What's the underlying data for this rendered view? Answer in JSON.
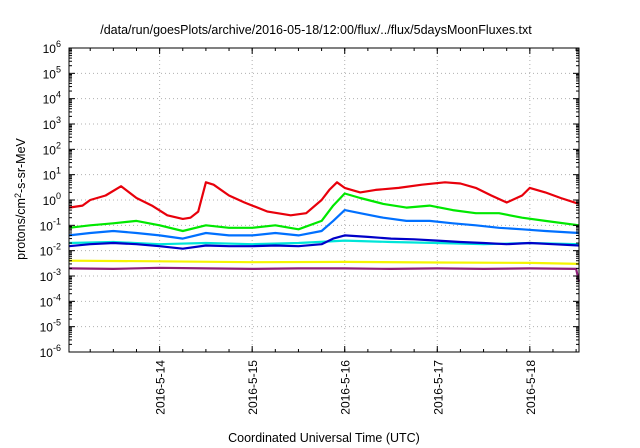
{
  "chart_data": {
    "type": "line",
    "title": "/data/run/goesPlots/archive/2016-05-18/12:00/flux/../flux/5daysMoonFluxes.txt",
    "xlabel": "Coordinated Universal Time (UTC)",
    "ylabel": {
      "pre": "protons/cm",
      "sup": "2",
      "post": "-s-sr-MeV"
    },
    "yscale": "log",
    "ylim": [
      1e-06,
      1000000.0
    ],
    "y_ticks": [
      {
        "value": 1e-06,
        "base": "10",
        "exp": "-6"
      },
      {
        "value": 1e-05,
        "base": "10",
        "exp": "-5"
      },
      {
        "value": 0.0001,
        "base": "10",
        "exp": "-4"
      },
      {
        "value": 0.001,
        "base": "10",
        "exp": "-3"
      },
      {
        "value": 0.01,
        "base": "10",
        "exp": "-2"
      },
      {
        "value": 0.1,
        "base": "10",
        "exp": "-1"
      },
      {
        "value": 1,
        "base": "10",
        "exp": "0"
      },
      {
        "value": 10,
        "base": "10",
        "exp": "1"
      },
      {
        "value": 100,
        "base": "10",
        "exp": "2"
      },
      {
        "value": 1000,
        "base": "10",
        "exp": "3"
      },
      {
        "value": 10000,
        "base": "10",
        "exp": "4"
      },
      {
        "value": 100000,
        "base": "10",
        "exp": "5"
      },
      {
        "value": 1000000,
        "base": "10",
        "exp": "6"
      }
    ],
    "xlim": [
      "2016-05-13T00:30",
      "2016-05-18T12:45"
    ],
    "x_ticks": [
      {
        "value": "2016-05-14T00:00",
        "label": "2016-5-14"
      },
      {
        "value": "2016-05-15T00:00",
        "label": "2016-5-15"
      },
      {
        "value": "2016-05-16T00:00",
        "label": "2016-5-16"
      },
      {
        "value": "2016-05-17T00:00",
        "label": "2016-5-17"
      },
      {
        "value": "2016-05-18T00:00",
        "label": "2016-5-18"
      }
    ],
    "grid": true,
    "series": [
      {
        "color": "#e8000b",
        "x": [
          "2016-05-13T00:30",
          "2016-05-13T04:00",
          "2016-05-13T06:00",
          "2016-05-13T10:00",
          "2016-05-13T14:00",
          "2016-05-13T18:00",
          "2016-05-13T22:00",
          "2016-05-14T02:00",
          "2016-05-14T06:00",
          "2016-05-14T08:00",
          "2016-05-14T10:00",
          "2016-05-14T12:00",
          "2016-05-14T14:00",
          "2016-05-14T18:00",
          "2016-05-14T22:00",
          "2016-05-15T04:00",
          "2016-05-15T10:00",
          "2016-05-15T14:00",
          "2016-05-15T18:00",
          "2016-05-15T20:00",
          "2016-05-15T22:00",
          "2016-05-16T00:00",
          "2016-05-16T04:00",
          "2016-05-16T08:00",
          "2016-05-16T14:00",
          "2016-05-16T20:00",
          "2016-05-17T02:00",
          "2016-05-17T06:00",
          "2016-05-17T10:00",
          "2016-05-17T14:00",
          "2016-05-17T18:00",
          "2016-05-17T22:00",
          "2016-05-18T00:00",
          "2016-05-18T04:00",
          "2016-05-18T08:00",
          "2016-05-18T12:45"
        ],
        "y": [
          0.5,
          0.6,
          1.0,
          1.5,
          3.5,
          1.2,
          0.6,
          0.25,
          0.18,
          0.2,
          0.35,
          5.0,
          4.0,
          1.5,
          0.8,
          0.35,
          0.25,
          0.3,
          1.0,
          2.5,
          5.0,
          3.0,
          2.0,
          2.5,
          3.0,
          4.0,
          5.0,
          4.5,
          3.0,
          1.5,
          0.8,
          1.5,
          3.0,
          2.0,
          1.2,
          0.7
        ]
      },
      {
        "color": "#00e800",
        "x": [
          "2016-05-13T00:30",
          "2016-05-13T06:00",
          "2016-05-13T12:00",
          "2016-05-13T18:00",
          "2016-05-14T00:00",
          "2016-05-14T06:00",
          "2016-05-14T12:00",
          "2016-05-14T18:00",
          "2016-05-15T00:00",
          "2016-05-15T06:00",
          "2016-05-15T12:00",
          "2016-05-15T18:00",
          "2016-05-15T21:00",
          "2016-05-16T00:00",
          "2016-05-16T04:00",
          "2016-05-16T10:00",
          "2016-05-16T16:00",
          "2016-05-16T22:00",
          "2016-05-17T04:00",
          "2016-05-17T10:00",
          "2016-05-17T16:00",
          "2016-05-17T22:00",
          "2016-05-18T04:00",
          "2016-05-18T12:45"
        ],
        "y": [
          0.08,
          0.1,
          0.12,
          0.15,
          0.1,
          0.06,
          0.1,
          0.08,
          0.08,
          0.1,
          0.07,
          0.15,
          0.6,
          1.8,
          1.2,
          0.7,
          0.5,
          0.6,
          0.4,
          0.3,
          0.3,
          0.2,
          0.15,
          0.1
        ]
      },
      {
        "color": "#0070ff",
        "x": [
          "2016-05-13T00:30",
          "2016-05-13T06:00",
          "2016-05-13T12:00",
          "2016-05-13T18:00",
          "2016-05-14T00:00",
          "2016-05-14T06:00",
          "2016-05-14T12:00",
          "2016-05-14T18:00",
          "2016-05-15T00:00",
          "2016-05-15T06:00",
          "2016-05-15T12:00",
          "2016-05-15T18:00",
          "2016-05-15T21:00",
          "2016-05-16T00:00",
          "2016-05-16T04:00",
          "2016-05-16T10:00",
          "2016-05-16T16:00",
          "2016-05-16T22:00",
          "2016-05-17T04:00",
          "2016-05-17T10:00",
          "2016-05-17T16:00",
          "2016-05-17T22:00",
          "2016-05-18T04:00",
          "2016-05-18T12:45"
        ],
        "y": [
          0.04,
          0.05,
          0.06,
          0.05,
          0.04,
          0.03,
          0.05,
          0.04,
          0.04,
          0.05,
          0.04,
          0.06,
          0.15,
          0.4,
          0.3,
          0.2,
          0.15,
          0.15,
          0.12,
          0.1,
          0.08,
          0.07,
          0.06,
          0.05
        ]
      },
      {
        "color": "#00e5d8",
        "x": [
          "2016-05-13T00:30",
          "2016-05-13T12:00",
          "2016-05-14T00:00",
          "2016-05-14T12:00",
          "2016-05-15T00:00",
          "2016-05-15T12:00",
          "2016-05-16T00:00",
          "2016-05-16T12:00",
          "2016-05-17T00:00",
          "2016-05-17T12:00",
          "2016-05-18T00:00",
          "2016-05-18T12:45"
        ],
        "y": [
          0.02,
          0.022,
          0.018,
          0.02,
          0.018,
          0.02,
          0.025,
          0.022,
          0.02,
          0.018,
          0.02,
          0.018
        ]
      },
      {
        "color": "#0000c8",
        "x": [
          "2016-05-13T00:30",
          "2016-05-13T06:00",
          "2016-05-13T12:00",
          "2016-05-13T18:00",
          "2016-05-14T00:00",
          "2016-05-14T06:00",
          "2016-05-14T12:00",
          "2016-05-14T18:00",
          "2016-05-15T00:00",
          "2016-05-15T06:00",
          "2016-05-15T12:00",
          "2016-05-15T18:00",
          "2016-05-15T21:00",
          "2016-05-16T00:00",
          "2016-05-16T06:00",
          "2016-05-16T12:00",
          "2016-05-16T18:00",
          "2016-05-17T00:00",
          "2016-05-17T06:00",
          "2016-05-17T12:00",
          "2016-05-17T18:00",
          "2016-05-18T00:00",
          "2016-05-18T06:00",
          "2016-05-18T12:45"
        ],
        "y": [
          0.015,
          0.018,
          0.02,
          0.018,
          0.015,
          0.012,
          0.016,
          0.015,
          0.015,
          0.016,
          0.015,
          0.018,
          0.03,
          0.04,
          0.035,
          0.03,
          0.028,
          0.025,
          0.022,
          0.02,
          0.018,
          0.02,
          0.018,
          0.016
        ]
      },
      {
        "color": "#f5f500",
        "x": [
          "2016-05-13T00:30",
          "2016-05-14T00:00",
          "2016-05-15T00:00",
          "2016-05-16T00:00",
          "2016-05-17T00:00",
          "2016-05-18T00:00",
          "2016-05-18T12:45"
        ],
        "y": [
          0.004,
          0.0038,
          0.0035,
          0.0036,
          0.0034,
          0.0033,
          0.003
        ]
      },
      {
        "color": "#8e1e78",
        "x": [
          "2016-05-13T00:30",
          "2016-05-13T12:00",
          "2016-05-14T00:00",
          "2016-05-14T12:00",
          "2016-05-15T00:00",
          "2016-05-15T12:00",
          "2016-05-16T00:00",
          "2016-05-16T12:00",
          "2016-05-17T00:00",
          "2016-05-17T12:00",
          "2016-05-18T00:00",
          "2016-05-18T12:00",
          "2016-05-18T12:45"
        ],
        "y": [
          0.002,
          0.0019,
          0.0021,
          0.002,
          0.0019,
          0.002,
          0.002,
          0.0019,
          0.002,
          0.0019,
          0.002,
          0.0019,
          0.0006
        ]
      }
    ]
  }
}
